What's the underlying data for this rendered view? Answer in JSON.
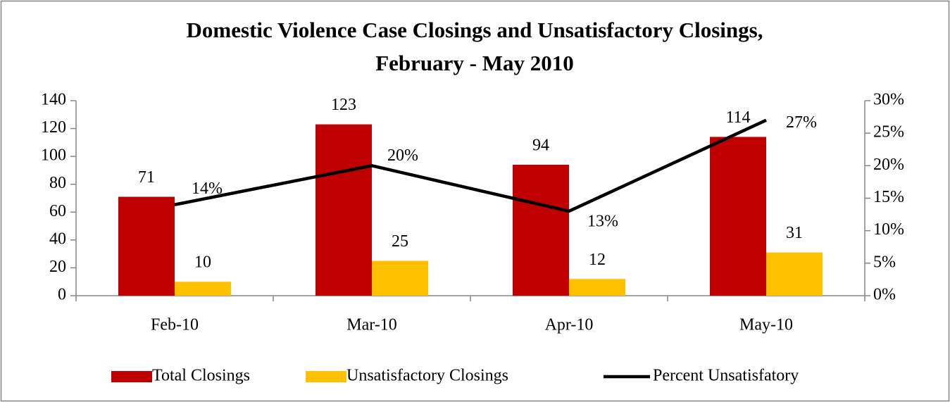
{
  "chart_data": {
    "type": "bar",
    "title": [
      "Domestic Violence Case Closings and Unsatisfactory Closings,",
      "February - May 2010"
    ],
    "categories": [
      "Feb-10",
      "Mar-10",
      "Apr-10",
      "May-10"
    ],
    "series": [
      {
        "name": "Total Closings",
        "color": "#c00000",
        "type": "bar",
        "values": [
          71,
          123,
          94,
          114
        ]
      },
      {
        "name": "Unsatisfactory Closings",
        "color": "#ffc000",
        "type": "bar",
        "values": [
          10,
          25,
          12,
          31
        ]
      },
      {
        "name": "Percent Unsatisfatory",
        "color": "#000000",
        "type": "line",
        "axis": "y2",
        "values": [
          14,
          20,
          13,
          27
        ],
        "value_labels": [
          "14%",
          "20%",
          "13%",
          "27%"
        ]
      }
    ],
    "ylim": [
      0,
      140
    ],
    "yticks": [
      0,
      20,
      40,
      60,
      80,
      100,
      120,
      140
    ],
    "y2lim": [
      0,
      30
    ],
    "y2ticks": [
      {
        "value": 0,
        "label": "0%"
      },
      {
        "value": 5,
        "label": "5%"
      },
      {
        "value": 10,
        "label": "10%"
      },
      {
        "value": 15,
        "label": "15%"
      },
      {
        "value": 20,
        "label": "20%"
      },
      {
        "value": 25,
        "label": "25%"
      },
      {
        "value": 30,
        "label": "30%"
      }
    ],
    "legend": "bottom"
  }
}
